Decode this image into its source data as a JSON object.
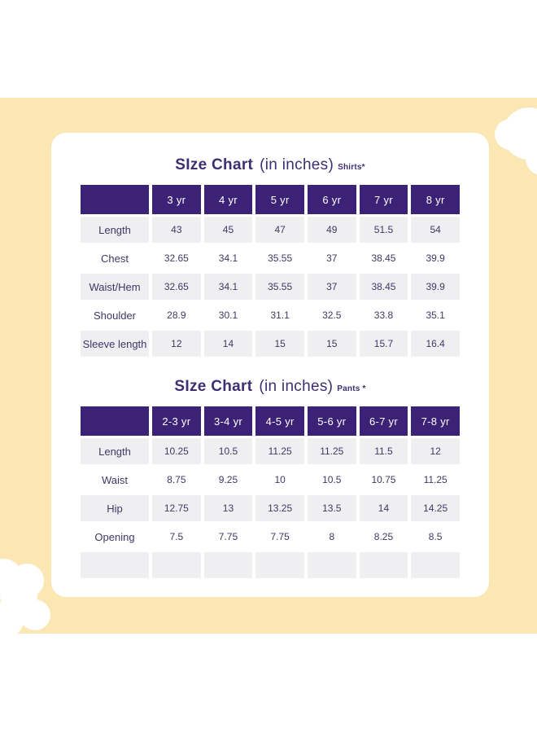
{
  "page": {
    "background_top_color": "#FFFFFF",
    "band_color": "#FBE7B4",
    "card_color": "#FFFFFF",
    "header_purple": "#3C2277",
    "title_color": "#3E2F70",
    "value_text_color": "#413767",
    "shaded_row_color": "#EFEEF1"
  },
  "shirts_table": {
    "title": "SIze Chart",
    "title_suffix": "(in inches)",
    "title_note": "Shirts*",
    "columns": [
      "",
      "3 yr",
      "4 yr",
      "5 yr",
      "6 yr",
      "7 yr",
      "8 yr"
    ],
    "rows": [
      {
        "label": "Length",
        "values": [
          "43",
          "45",
          "47",
          "49",
          "51.5",
          "54"
        ],
        "shaded": true
      },
      {
        "label": "Chest",
        "values": [
          "32.65",
          "34.1",
          "35.55",
          "37",
          "38.45",
          "39.9"
        ],
        "shaded": false
      },
      {
        "label": "Waist/Hem",
        "values": [
          "32.65",
          "34.1",
          "35.55",
          "37",
          "38.45",
          "39.9"
        ],
        "shaded": true
      },
      {
        "label": "Shoulder",
        "values": [
          "28.9",
          "30.1",
          "31.1",
          "32.5",
          "33.8",
          "35.1"
        ],
        "shaded": false
      },
      {
        "label": "Sleeve length",
        "values": [
          "12",
          "14",
          "15",
          "15",
          "15.7",
          "16.4"
        ],
        "shaded": true
      }
    ]
  },
  "pants_table": {
    "title": "SIze Chart",
    "title_suffix": "(in inches)",
    "title_note": "Pants *",
    "columns": [
      "",
      "2-3 yr",
      "3-4 yr",
      "4-5 yr",
      "5-6 yr",
      "6-7 yr",
      "7-8 yr"
    ],
    "rows": [
      {
        "label": "Length",
        "values": [
          "10.25",
          "10.5",
          "11.25",
          "11.25",
          "11.5",
          "12"
        ],
        "shaded": true
      },
      {
        "label": "Waist",
        "values": [
          "8.75",
          "9.25",
          "10",
          "10.5",
          "10.75",
          "11.25"
        ],
        "shaded": false
      },
      {
        "label": "Hip",
        "values": [
          "12.75",
          "13",
          "13.25",
          "13.5",
          "14",
          "14.25"
        ],
        "shaded": true
      },
      {
        "label": "Opening",
        "values": [
          "7.5",
          "7.75",
          "7.75",
          "8",
          "8.25",
          "8.5"
        ],
        "shaded": false
      },
      {
        "label": "",
        "values": [
          "",
          "",
          "",
          "",
          "",
          ""
        ],
        "shaded": true
      }
    ]
  }
}
